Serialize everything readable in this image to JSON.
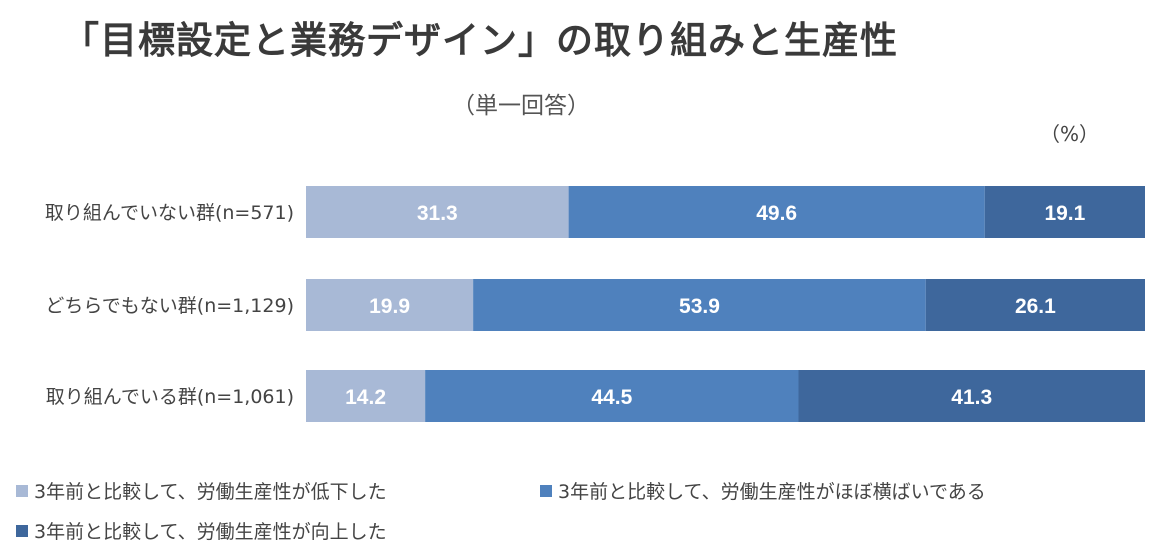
{
  "title": "「目標設定と業務デザイン」の取り組みと生産性",
  "subtitle": "（単一回答）",
  "unit": "（%）",
  "colors": {
    "decreased": "#a8b9d6",
    "flat": "#4f81bd",
    "increased": "#3e679c",
    "bar_label": "#ffffff"
  },
  "chart_data": {
    "type": "bar",
    "orientation": "horizontal",
    "stacked": true,
    "percent": true,
    "categories": [
      "取り組んでいない群(n=571)",
      "どちらでもない群(n=1,129)",
      "取り組んでいる群(n=1,061)"
    ],
    "series": [
      {
        "name": "3年前と比較して、労働生産性が低下した",
        "values": [
          31.3,
          19.9,
          14.2
        ]
      },
      {
        "name": "3年前と比較して、労働生産性がほぼ横ばいである",
        "values": [
          49.6,
          53.9,
          44.5
        ]
      },
      {
        "name": "3年前と比較して、労働生産性が向上した",
        "values": [
          19.1,
          26.1,
          41.3
        ]
      }
    ],
    "value_labels": [
      [
        "31.3",
        "49.6",
        "19.1"
      ],
      [
        "19.9",
        "53.9",
        "26.1"
      ],
      [
        "14.2",
        "44.5",
        "41.3"
      ]
    ],
    "xlim": [
      0,
      100
    ],
    "legend_position": "bottom",
    "grid": false
  }
}
